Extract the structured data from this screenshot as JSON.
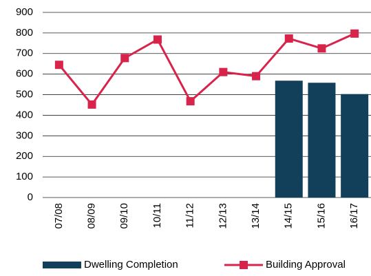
{
  "chart_data": {
    "type": "combo",
    "categories": [
      "07/08",
      "08/09",
      "09/10",
      "10/11",
      "11/12",
      "12/13",
      "13/14",
      "14/15",
      "15/16",
      "16/17"
    ],
    "series": [
      {
        "name": "Dwelling Completion",
        "type": "bar",
        "color": "#123f5a",
        "values": [
          null,
          null,
          null,
          null,
          null,
          null,
          null,
          568,
          558,
          503
        ]
      },
      {
        "name": "Building Approval",
        "type": "line",
        "color": "#d8234a",
        "values": [
          645,
          452,
          678,
          768,
          468,
          610,
          590,
          773,
          725,
          797
        ]
      }
    ],
    "ylim": [
      0,
      900
    ],
    "yticks": [
      0,
      100,
      200,
      300,
      400,
      500,
      600,
      700,
      800,
      900
    ],
    "grid": true,
    "legend": "bottom"
  }
}
